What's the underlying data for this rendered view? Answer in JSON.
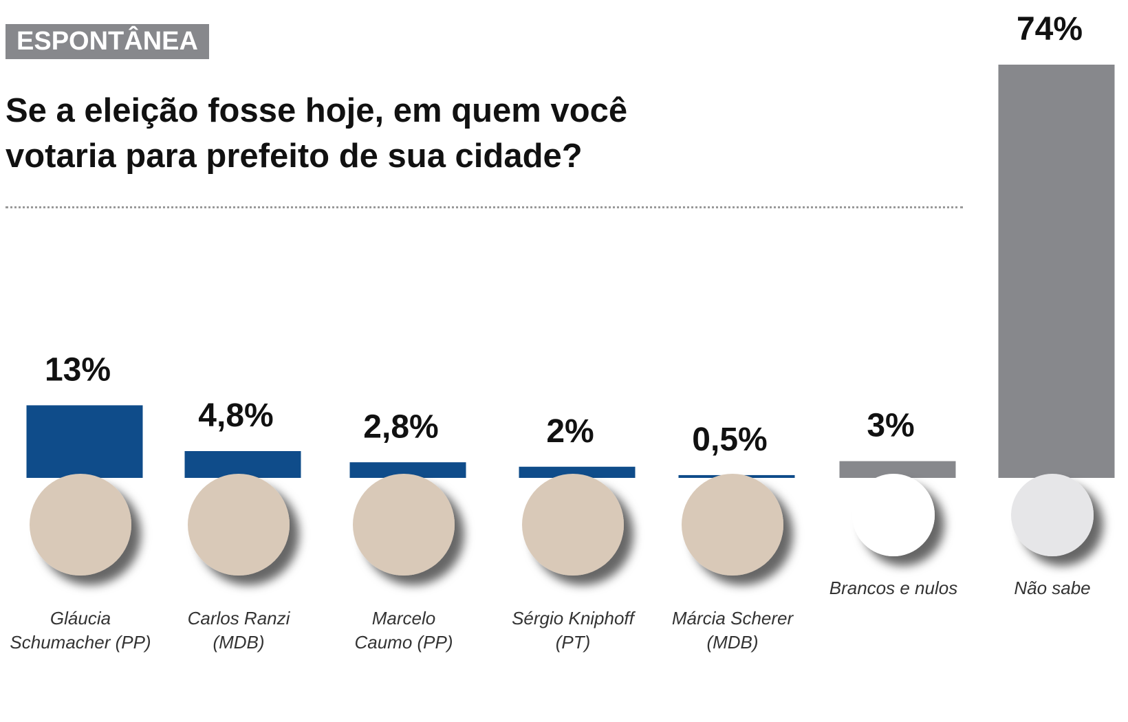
{
  "tag": "ESPONTÂNEA",
  "chart_data": {
    "type": "bar",
    "title": "Se a eleição fosse hoje, em quem você votaria para prefeito de sua cidade?",
    "categories": [
      "Gláucia Schumacher (PP)",
      "Carlos Ranzi (MDB)",
      "Marcelo Caumo (PP)",
      "Sérgio Kniphoff (PT)",
      "Márcia Scherer (MDB)",
      "Brancos e nulos",
      "Não sabe"
    ],
    "values": [
      13,
      4.8,
      2.8,
      2,
      0.5,
      3,
      74
    ],
    "value_labels": [
      "13%",
      "4,8%",
      "2,8%",
      "2%",
      "0,5%",
      "3%",
      "74%"
    ],
    "colors": [
      "#0f4c8a",
      "#0f4c8a",
      "#0f4c8a",
      "#0f4c8a",
      "#0f4c8a",
      "#87888c",
      "#87888c"
    ]
  }
}
